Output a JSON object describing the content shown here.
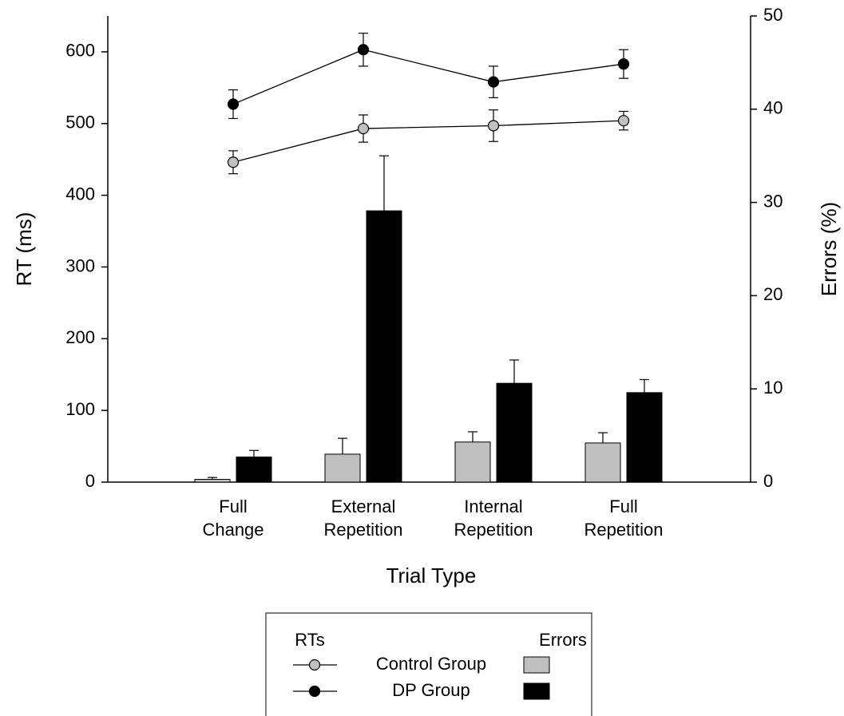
{
  "chart_data": {
    "type": "bar",
    "x_label": "Trial Type",
    "y_label": "RT (ms)",
    "y2_label": "Errors (%)",
    "categories": [
      "Full Change",
      "External Repetition",
      "Internal Repetition",
      "Full Repetition"
    ],
    "ylim": [
      0,
      650
    ],
    "yticks": [
      0,
      100,
      200,
      300,
      400,
      500,
      600
    ],
    "y2lim": [
      0,
      50
    ],
    "y2ticks": [
      0,
      10,
      20,
      30,
      40,
      50
    ],
    "legend_titles": {
      "lines": "RTs",
      "bars": "Errors"
    },
    "series": [
      {
        "name": "Control Group",
        "type": "line",
        "color": "#c0c0c0",
        "values": [
          446,
          493,
          497,
          504
        ],
        "errors": [
          16,
          19,
          22,
          13
        ]
      },
      {
        "name": "DP Group",
        "type": "line",
        "color": "#000000",
        "values": [
          527,
          603,
          558,
          583
        ],
        "errors": [
          20,
          23,
          22,
          20
        ]
      },
      {
        "name": "Control Group",
        "type": "bar",
        "axis": "y2",
        "color": "#c0c0c0",
        "values": [
          0.3,
          3.0,
          4.3,
          4.2
        ],
        "errors": [
          0.2,
          1.7,
          1.1,
          1.1
        ]
      },
      {
        "name": "DP Group",
        "type": "bar",
        "axis": "y2",
        "color": "#000000",
        "values": [
          2.7,
          29.1,
          10.6,
          9.6
        ],
        "errors": [
          0.7,
          5.9,
          2.5,
          1.4
        ]
      }
    ]
  }
}
